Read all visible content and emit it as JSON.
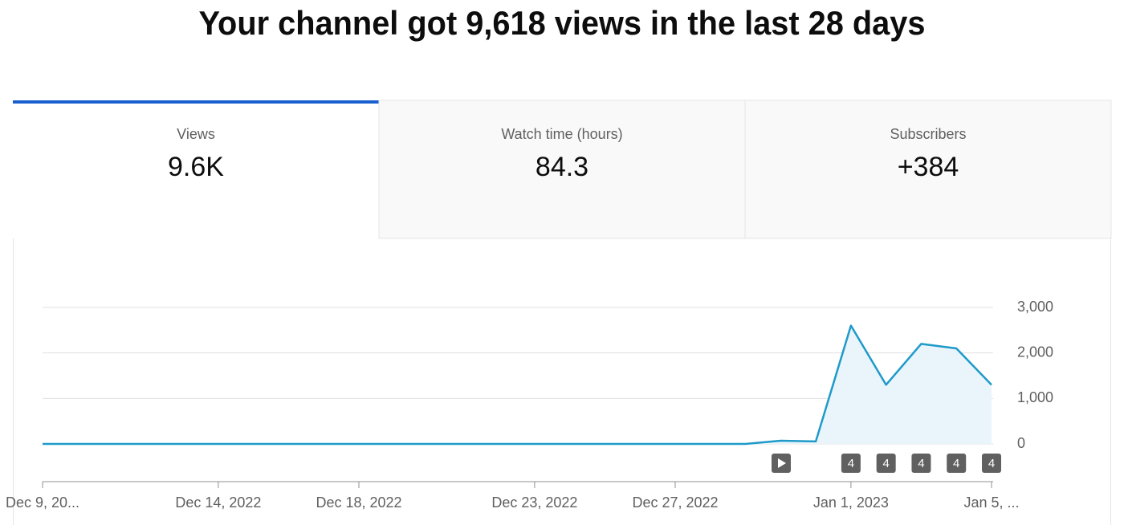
{
  "header": {
    "title": "Your channel got 9,618 views in the last 28 days"
  },
  "tabs": [
    {
      "label": "Views",
      "value": "9.6K",
      "selected": true
    },
    {
      "label": "Watch time (hours)",
      "value": "84.3",
      "selected": false
    },
    {
      "label": "Subscribers",
      "value": "+384",
      "selected": false
    }
  ],
  "chart_data": {
    "type": "line",
    "categories": [
      "Dec 9, 20...",
      null,
      null,
      null,
      null,
      "Dec 14, 2022",
      null,
      null,
      null,
      "Dec 18, 2022",
      null,
      null,
      null,
      null,
      "Dec 23, 2022",
      null,
      null,
      null,
      "Dec 27, 2022",
      null,
      null,
      null,
      null,
      "Jan 1, 2023",
      null,
      null,
      null,
      "Jan 5, ..."
    ],
    "series": [
      {
        "name": "Views",
        "color": "#1e9ac9",
        "values": [
          0,
          0,
          0,
          0,
          0,
          0,
          0,
          0,
          0,
          0,
          0,
          0,
          0,
          0,
          0,
          0,
          0,
          0,
          0,
          0,
          0,
          70,
          55,
          2600,
          1300,
          2200,
          2100,
          1300
        ]
      }
    ],
    "area_color": "#e9f4fb",
    "event_labels": [
      null,
      null,
      null,
      null,
      null,
      null,
      null,
      null,
      null,
      null,
      null,
      null,
      null,
      null,
      null,
      null,
      null,
      null,
      null,
      null,
      null,
      null,
      null,
      "4",
      "4",
      "4",
      "4",
      "4"
    ],
    "ylim": [
      0,
      3000
    ],
    "yticks": [
      0,
      {
        "value": 1000,
        "label": "1,000"
      },
      {
        "value": 2000,
        "label": "2,000"
      },
      {
        "value": 3000,
        "label": "3,000"
      }
    ],
    "grid": true
  }
}
